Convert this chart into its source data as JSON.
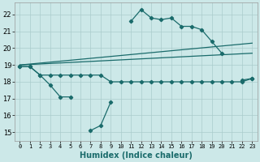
{
  "title": "",
  "xlabel": "Humidex (Indice chaleur)",
  "xlim": [
    -0.5,
    23.5
  ],
  "ylim": [
    14.5,
    22.7
  ],
  "yticks": [
    15,
    16,
    17,
    18,
    19,
    20,
    21,
    22
  ],
  "xticks": [
    0,
    1,
    2,
    3,
    4,
    5,
    6,
    7,
    8,
    9,
    10,
    11,
    12,
    13,
    14,
    15,
    16,
    17,
    18,
    19,
    20,
    21,
    22,
    23
  ],
  "bg_color": "#cce8e8",
  "grid_color": "#aacccc",
  "line_color": "#1a6b6b",
  "line1_x": [
    0,
    1,
    2,
    3,
    4,
    5,
    7,
    8,
    9,
    11,
    12,
    13,
    14,
    15,
    16,
    17,
    18,
    19,
    20,
    22,
    23
  ],
  "line1_y": [
    18.9,
    18.9,
    18.4,
    17.8,
    17.1,
    17.1,
    15.1,
    15.4,
    16.8,
    21.6,
    22.3,
    21.8,
    21.7,
    21.8,
    21.3,
    21.3,
    21.1,
    20.4,
    19.7,
    18.1,
    18.2
  ],
  "line1_breaks": [
    [
      5,
      7
    ],
    [
      9,
      11
    ],
    [
      20,
      22
    ]
  ],
  "line2_x": [
    0,
    1,
    2,
    3,
    4,
    5,
    6,
    7,
    8,
    9,
    10,
    11,
    12,
    13,
    14,
    15,
    16,
    17,
    18,
    19,
    20,
    21,
    22,
    23
  ],
  "line2_y": [
    18.9,
    18.9,
    18.4,
    18.4,
    18.4,
    18.4,
    18.4,
    18.4,
    18.4,
    18.0,
    18.0,
    18.0,
    18.0,
    18.0,
    18.0,
    18.0,
    18.0,
    18.0,
    18.0,
    18.0,
    18.0,
    18.0,
    18.0,
    18.2
  ],
  "line3_x": [
    0,
    23
  ],
  "line3_y": [
    19.0,
    19.7
  ],
  "line4_x": [
    0,
    23
  ],
  "line4_y": [
    19.0,
    20.3
  ]
}
